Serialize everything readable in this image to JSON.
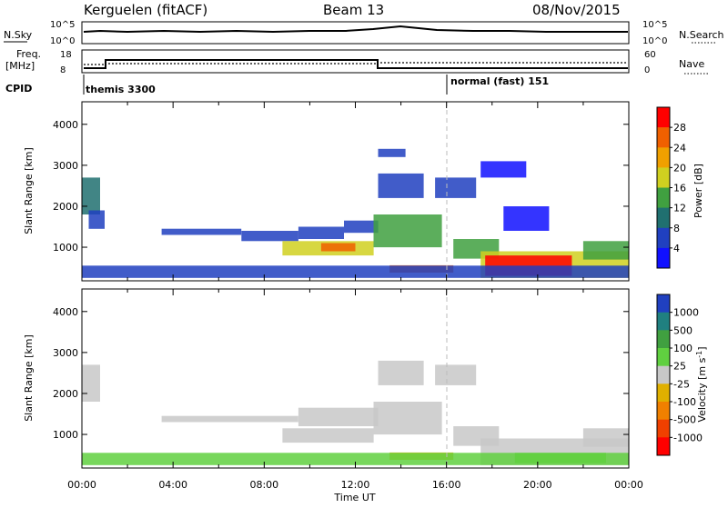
{
  "header": {
    "station": "Kerguelen (fitACF)",
    "beam": "Beam 13",
    "date": "08/Nov/2015"
  },
  "noise_panel": {
    "left_label": "N.Sky",
    "right_label": "N.Search",
    "left_ticks": [
      "10^5",
      "10^0"
    ],
    "right_ticks": [
      "10^5",
      "10^0"
    ]
  },
  "freq_panel": {
    "left_label_1": "Freq.",
    "left_label_2": "[MHz]",
    "left_ticks": [
      "18",
      "8"
    ],
    "right_ticks": [
      "60",
      "0"
    ],
    "right_label": "Nave",
    "cpid_label": "CPID",
    "cpid_segments": [
      {
        "name": "themis 3300",
        "start_hour": 0,
        "end_hour": 16
      },
      {
        "name": "normal (fast) 151",
        "start_hour": 16,
        "end_hour": 24
      }
    ]
  },
  "chart_data": [
    {
      "type": "heatmap",
      "title": "Power",
      "ylabel": "Slant Range [km]",
      "xlabel": "",
      "ylim": [
        180,
        4550
      ],
      "xlim_hours": [
        0,
        24
      ],
      "y_ticks": [
        1000,
        2000,
        3000,
        4000
      ],
      "colorbar": {
        "label": "Power [dB]",
        "ticks": [
          "4",
          "8",
          "12",
          "16",
          "20",
          "24",
          "28"
        ],
        "colors": [
          "#1010ff",
          "#2040c0",
          "#207070",
          "#40a040",
          "#d0d020",
          "#f0a000",
          "#f06000",
          "#ff0000"
        ]
      },
      "echo_regions": [
        {
          "t0": 0.0,
          "t1": 0.8,
          "r0": 1800,
          "r1": 2700,
          "level": 2
        },
        {
          "t0": 0.3,
          "t1": 1.0,
          "r0": 1450,
          "r1": 1900,
          "level": 1
        },
        {
          "t0": 3.5,
          "t1": 7.0,
          "r0": 1300,
          "r1": 1450,
          "level": 1
        },
        {
          "t0": 7.0,
          "t1": 9.5,
          "r0": 1150,
          "r1": 1400,
          "level": 1
        },
        {
          "t0": 9.5,
          "t1": 11.5,
          "r0": 1200,
          "r1": 1500,
          "level": 1
        },
        {
          "t0": 11.5,
          "t1": 13.0,
          "r0": 1350,
          "r1": 1650,
          "level": 1
        },
        {
          "t0": 8.8,
          "t1": 12.8,
          "r0": 800,
          "r1": 1150,
          "level": 4
        },
        {
          "t0": 10.5,
          "t1": 12.0,
          "r0": 900,
          "r1": 1100,
          "level": 6
        },
        {
          "t0": 12.8,
          "t1": 15.8,
          "r0": 1000,
          "r1": 1800,
          "level": 3
        },
        {
          "t0": 13.0,
          "t1": 15.0,
          "r0": 2200,
          "r1": 2800,
          "level": 1
        },
        {
          "t0": 13.0,
          "t1": 14.2,
          "r0": 3200,
          "r1": 3400,
          "level": 1
        },
        {
          "t0": 15.5,
          "t1": 17.3,
          "r0": 2200,
          "r1": 2700,
          "level": 1
        },
        {
          "t0": 13.5,
          "t1": 16.3,
          "r0": 380,
          "r1": 560,
          "level": 6
        },
        {
          "t0": 16.3,
          "t1": 18.3,
          "r0": 720,
          "r1": 1200,
          "level": 3
        },
        {
          "t0": 17.5,
          "t1": 24.0,
          "r0": 250,
          "r1": 900,
          "level": 4
        },
        {
          "t0": 17.7,
          "t1": 21.5,
          "r0": 300,
          "r1": 800,
          "level": 7
        },
        {
          "t0": 22.0,
          "t1": 24.0,
          "r0": 700,
          "r1": 1150,
          "level": 3
        },
        {
          "t0": 0.0,
          "t1": 24.0,
          "r0": 250,
          "r1": 550,
          "level": 1
        },
        {
          "t0": 18.5,
          "t1": 20.5,
          "r0": 1400,
          "r1": 2000,
          "level": 0
        },
        {
          "t0": 17.5,
          "t1": 19.5,
          "r0": 2700,
          "r1": 3100,
          "level": 0
        }
      ]
    },
    {
      "type": "heatmap",
      "title": "Velocity",
      "ylabel": "Slant Range [km]",
      "xlabel": "Time UT",
      "ylim": [
        180,
        4550
      ],
      "xlim_hours": [
        0,
        24
      ],
      "y_ticks": [
        1000,
        2000,
        3000,
        4000
      ],
      "x_ticks": [
        "00:00",
        "04:00",
        "08:00",
        "12:00",
        "16:00",
        "20:00",
        "00:00"
      ],
      "colorbar": {
        "label": "Velocity [m s^-1]",
        "ticks": [
          "1000",
          "500",
          "100",
          "25",
          "-25",
          "-100",
          "-500",
          "-1000"
        ],
        "colors": [
          "#2040c0",
          "#208080",
          "#40a040",
          "#60d040",
          "#c8c8c8",
          "#e0b000",
          "#f08000",
          "#f04000",
          "#ff0000"
        ]
      },
      "echo_regions": [
        {
          "t0": 0.0,
          "t1": 0.8,
          "r0": 1800,
          "r1": 2700,
          "level": 4
        },
        {
          "t0": 3.5,
          "t1": 9.5,
          "r0": 1300,
          "r1": 1450,
          "level": 4
        },
        {
          "t0": 9.5,
          "t1": 13.0,
          "r0": 1200,
          "r1": 1650,
          "level": 4
        },
        {
          "t0": 8.8,
          "t1": 12.8,
          "r0": 800,
          "r1": 1150,
          "level": 4
        },
        {
          "t0": 12.8,
          "t1": 15.8,
          "r0": 1000,
          "r1": 1800,
          "level": 4
        },
        {
          "t0": 13.0,
          "t1": 15.0,
          "r0": 2200,
          "r1": 2800,
          "level": 4
        },
        {
          "t0": 15.5,
          "t1": 17.3,
          "r0": 2200,
          "r1": 2700,
          "level": 4
        },
        {
          "t0": 13.5,
          "t1": 16.3,
          "r0": 380,
          "r1": 560,
          "level": 5
        },
        {
          "t0": 16.3,
          "t1": 18.3,
          "r0": 720,
          "r1": 1200,
          "level": 4
        },
        {
          "t0": 17.5,
          "t1": 24.0,
          "r0": 250,
          "r1": 900,
          "level": 4
        },
        {
          "t0": 19.0,
          "t1": 23.0,
          "r0": 300,
          "r1": 550,
          "level": 3
        },
        {
          "t0": 22.0,
          "t1": 24.0,
          "r0": 700,
          "r1": 1150,
          "level": 4
        },
        {
          "t0": 0.0,
          "t1": 24.0,
          "r0": 250,
          "r1": 550,
          "level": 3
        }
      ]
    }
  ]
}
